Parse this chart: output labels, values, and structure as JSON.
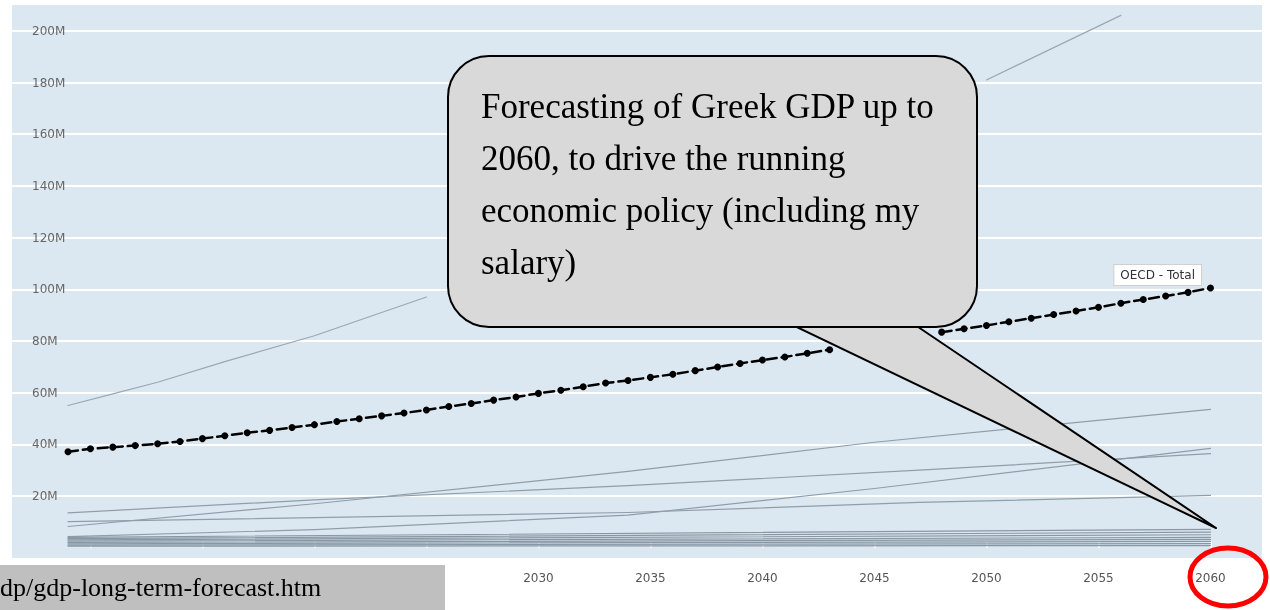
{
  "chart_data": {
    "type": "line",
    "xlim": [
      2006.5,
      2062.3
    ],
    "xticks": [
      {
        "value": 2010,
        "label": null
      },
      {
        "value": 2015,
        "label": null
      },
      {
        "value": 2020,
        "label": null
      },
      {
        "value": 2025,
        "label": null
      },
      2030,
      2035,
      2040,
      2045,
      2050,
      2055,
      2060
    ],
    "ylim": [
      -4,
      210
    ],
    "yticks": [
      {
        "value": 20,
        "label": "20M"
      },
      {
        "value": 40,
        "label": "40M"
      },
      {
        "value": 60,
        "label": "60M"
      },
      {
        "value": 80,
        "label": "80M"
      },
      {
        "value": 100,
        "label": "100M"
      },
      {
        "value": 120,
        "label": "120M"
      },
      {
        "value": 140,
        "label": "140M"
      },
      {
        "value": 160,
        "label": "160M"
      },
      {
        "value": 180,
        "label": "180M"
      },
      {
        "value": 200,
        "label": "200M"
      }
    ],
    "grid": "y",
    "marker": "none",
    "line_style": "solid",
    "series": [
      {
        "color": "#9aa8b3",
        "x": [
          2009,
          2011,
          2013,
          2016,
          2020,
          2025,
          2030,
          2035,
          2040,
          2045,
          2050,
          2056
        ],
        "values": [
          55,
          59.5,
          64,
          72,
          82,
          97,
          null,
          null,
          null,
          null,
          181,
          206
        ]
      },
      {
        "color": "#8f9ea9",
        "x": [
          2009,
          2020,
          2034,
          2045,
          2060
        ],
        "values": [
          8.2,
          17,
          29.5,
          40.8,
          53.5
        ]
      },
      {
        "color": "#8f9ea9",
        "x": [
          2009,
          2020,
          2034,
          2047,
          2060
        ],
        "values": [
          13.5,
          18.5,
          24,
          30,
          36.4
        ]
      },
      {
        "color": "#8f9ea9",
        "x": [
          2009,
          2034,
          2047,
          2060
        ],
        "values": [
          10.1,
          13.6,
          17.5,
          20.2
        ]
      },
      {
        "color": "#8f9ea9",
        "x": [
          2009,
          2020,
          2034,
          2045,
          2060
        ],
        "values": [
          4.3,
          7,
          12.6,
          22.9,
          38.4
        ]
      },
      {
        "color": "#8797a4",
        "x": [
          2009,
          2060
        ],
        "values": [
          4.0,
          7.1
        ]
      },
      {
        "color": "#8797a4",
        "x": [
          2009,
          2060
        ],
        "values": [
          3.5,
          6.0
        ]
      },
      {
        "color": "#8797a4",
        "x": [
          2009,
          2060
        ],
        "values": [
          3.0,
          5.0
        ]
      },
      {
        "color": "#8797a4",
        "x": [
          2009,
          2060
        ],
        "values": [
          2.5,
          4.0
        ]
      },
      {
        "color": "#8797a4",
        "x": [
          2009,
          2060
        ],
        "values": [
          2.0,
          3.2
        ]
      },
      {
        "color": "#8797a4",
        "x": [
          2009,
          2060
        ],
        "values": [
          1.5,
          2.4
        ]
      },
      {
        "color": "#8797a4",
        "x": [
          2009,
          2060
        ],
        "values": [
          1.0,
          1.6
        ]
      },
      {
        "color": "#8797a4",
        "x": [
          2009,
          2060
        ],
        "values": [
          0.6,
          0.8
        ]
      },
      {
        "name": "OECD - Total",
        "color": "#000000",
        "marker": "circle",
        "line_style": "dashed",
        "x": [
          2009,
          2010,
          2011,
          2012,
          2013,
          2014,
          2015,
          2016,
          2017,
          2018,
          2019,
          2020,
          2021,
          2022,
          2023,
          2024,
          2025,
          2026,
          2027,
          2028,
          2029,
          2030,
          2031,
          2032,
          2033,
          2034,
          2035,
          2036,
          2037,
          2038,
          2039,
          2040,
          2041,
          2042,
          2043,
          2044,
          2045,
          2046,
          2047,
          2048,
          2049,
          2050,
          2051,
          2052,
          2053,
          2054,
          2055,
          2056,
          2057,
          2058,
          2059,
          2060
        ],
        "values": [
          37.1,
          38.3,
          38.9,
          39.5,
          40.2,
          41.1,
          42.2,
          43.3,
          44.5,
          45.4,
          46.5,
          47.6,
          48.8,
          49.9,
          51.0,
          52.1,
          53.3,
          54.6,
          55.8,
          57.1,
          58.3,
          59.7,
          60.9,
          62.3,
          63.7,
          64.7,
          65.9,
          67.1,
          68.5,
          69.9,
          71.3,
          72.6,
          73.8,
          75.2,
          76.6,
          null,
          null,
          null,
          null,
          83.4,
          84.7,
          86.0,
          87.4,
          88.8,
          90.2,
          91.6,
          93.0,
          94.6,
          96.0,
          97.4,
          98.8,
          100.5
        ]
      }
    ],
    "annotations": [
      "Forecasting of Greek GDP up to 2060, to drive the running economic policy (including my salary)",
      "dp/gdp-long-term-forecast.htm"
    ]
  }
}
